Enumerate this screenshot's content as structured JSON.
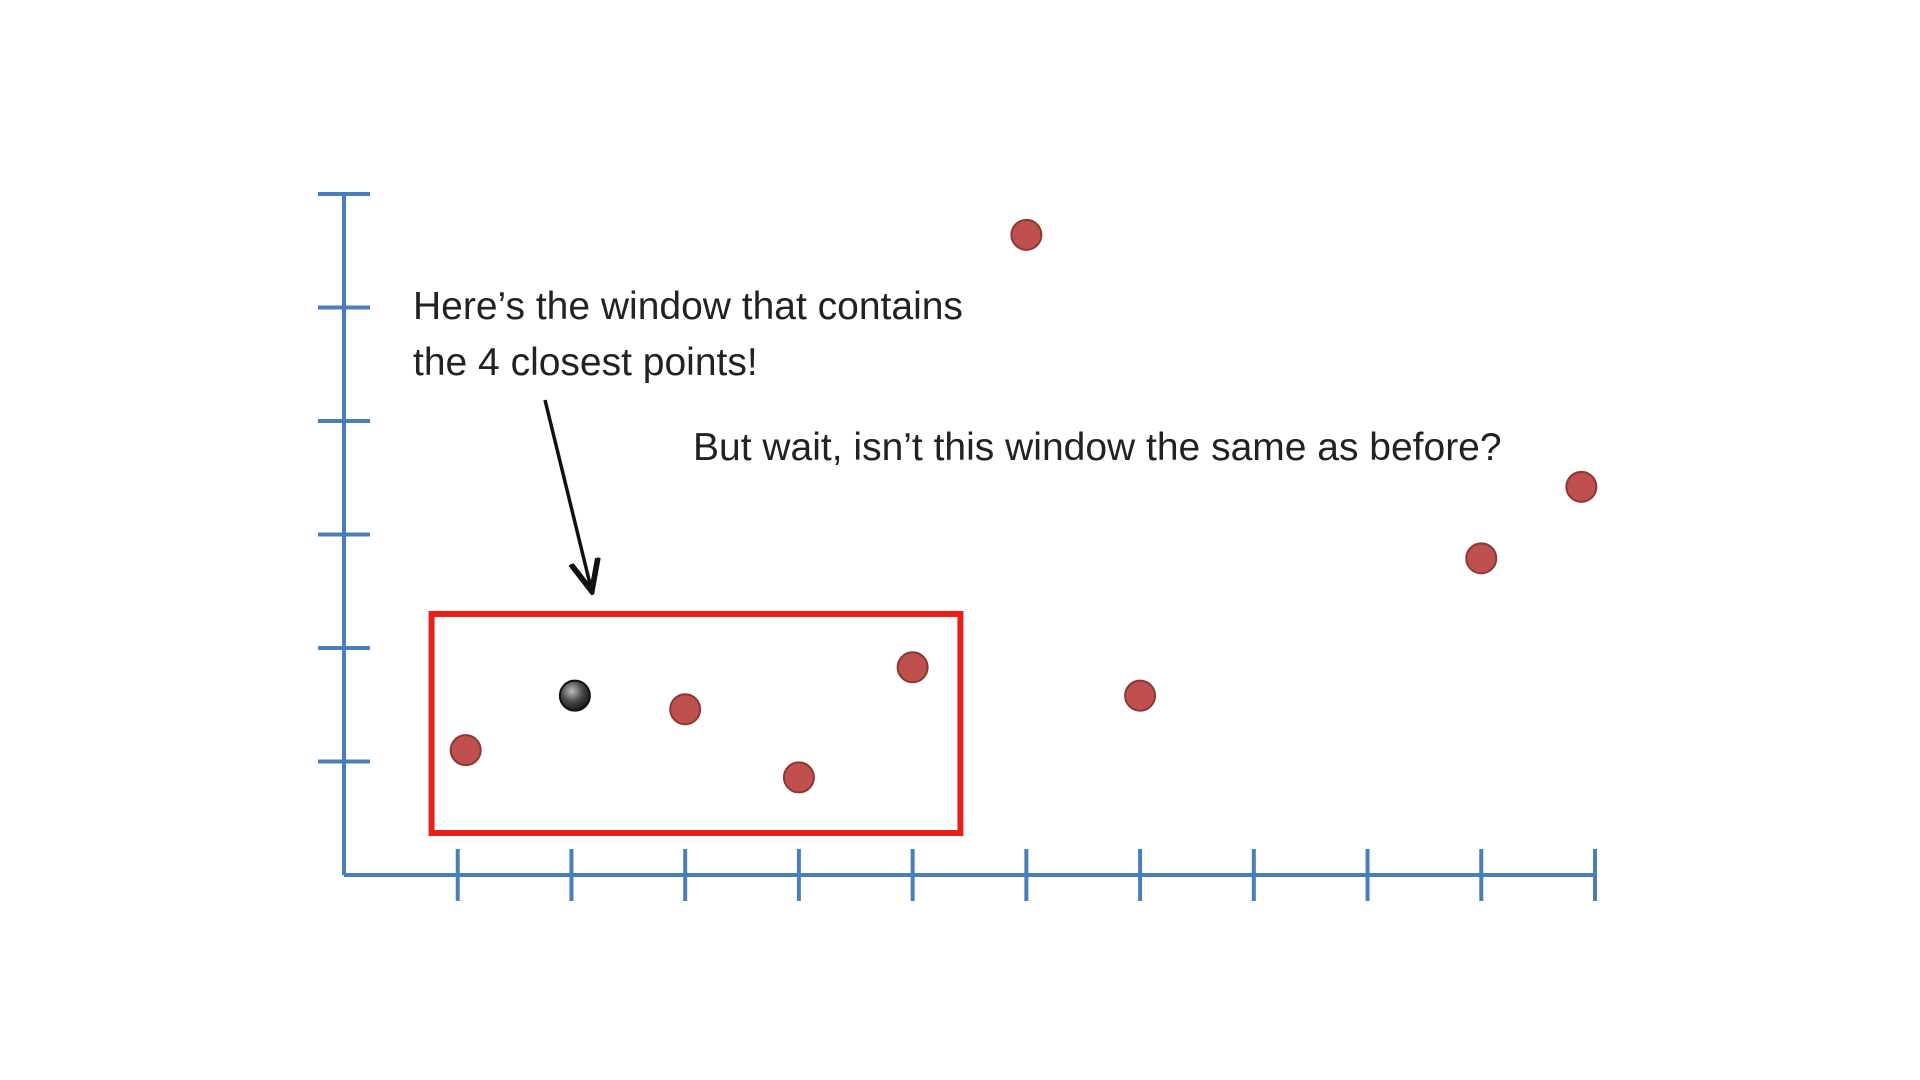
{
  "colors": {
    "axis": "#4a7ebb",
    "point": "#c0504d",
    "point_stroke": "#8c3836",
    "query_point": "#3a3a3a",
    "window": "#e8201c",
    "arrow": "#111111",
    "text": "#222222"
  },
  "annotations": {
    "window_line1": "Here’s the window that contains",
    "window_line2": "the 4 closest points!",
    "question": "But wait, isn’t this window the same as before?"
  },
  "chart_data": {
    "type": "scatter",
    "title": "",
    "xlabel": "",
    "ylabel": "",
    "xlim": [
      0,
      11
    ],
    "ylim": [
      0,
      6
    ],
    "x_ticks": [
      1,
      2,
      3,
      4,
      5,
      6,
      7,
      8,
      9,
      10,
      11
    ],
    "y_ticks": [
      1,
      2,
      3,
      4,
      5,
      6
    ],
    "grid": false,
    "legend": "none",
    "series": [
      {
        "points": [
          {
            "x": 1.07,
            "y": 1.1
          },
          {
            "x": 3.0,
            "y": 1.46
          },
          {
            "x": 4.0,
            "y": 0.86
          },
          {
            "x": 5.0,
            "y": 1.83
          },
          {
            "x": 6.0,
            "y": 5.64
          },
          {
            "x": 7.0,
            "y": 1.58
          },
          {
            "x": 10.0,
            "y": 2.79
          },
          {
            "x": 10.88,
            "y": 3.42
          }
        ]
      }
    ],
    "query_point": {
      "x": 2.03,
      "y": 1.58
    },
    "window": {
      "x_min": 0.77,
      "x_max": 5.42,
      "y_min": 0.37,
      "y_max": 2.3
    }
  }
}
